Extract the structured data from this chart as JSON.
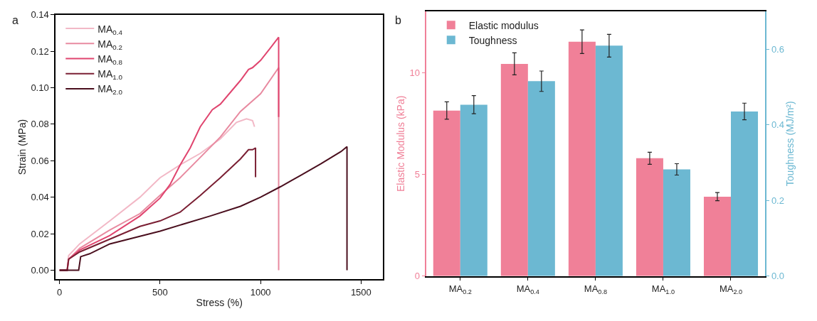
{
  "chart_data": [
    {
      "type": "line",
      "xlabel": "Stress (%)",
      "ylabel": "Strain (MPa)",
      "annotations": [
        "a"
      ],
      "xlim": [
        -20,
        1610
      ],
      "xticks": [
        0,
        500,
        1000,
        1500
      ],
      "ylim": [
        -0.005,
        0.14
      ],
      "yticks": [
        {
          "value": 0,
          "label": "0.00"
        },
        {
          "value": 0.02,
          "label": "0.02"
        },
        {
          "value": 0.04,
          "label": "0.04"
        },
        {
          "value": 0.06,
          "label": "0.06"
        },
        {
          "value": 0.08,
          "label": "0.08"
        },
        {
          "value": 0.1,
          "label": "0.10"
        },
        {
          "value": 0.12,
          "label": "0.12"
        },
        {
          "value": 0.14,
          "label": "0.14"
        }
      ],
      "grid": false,
      "legend": "top left",
      "marker": "none",
      "line_style": "solid",
      "series": [
        {
          "name": "MA$_{0.4}$",
          "color": "#f2b8c6",
          "x": [
            0,
            38,
            45,
            100,
            250,
            400,
            500,
            600,
            700,
            800,
            880,
            930,
            960,
            970
          ],
          "values": [
            0,
            0,
            0.008,
            0.0144,
            0.027,
            0.04,
            0.0507,
            0.0577,
            0.064,
            0.072,
            0.081,
            0.083,
            0.082,
            0.0786
          ]
        },
        {
          "name": "MA$_{0.2}$",
          "color": "#e88aa0",
          "x": [
            0,
            38,
            45,
            100,
            250,
            400,
            500,
            600,
            700,
            800,
            900,
            1000,
            1090,
            1090
          ],
          "values": [
            0,
            0,
            0.006,
            0.012,
            0.022,
            0.031,
            0.041,
            0.0507,
            0.0618,
            0.073,
            0.087,
            0.0967,
            0.111,
            0
          ]
        },
        {
          "name": "MA$_{0.8}$",
          "color": "#e0456f",
          "x": [
            0,
            38,
            45,
            100,
            250,
            400,
            500,
            550,
            600,
            650,
            700,
            760,
            800,
            900,
            940,
            960,
            1000,
            1050,
            1090,
            1090
          ],
          "values": [
            0,
            0,
            0.006,
            0.011,
            0.019,
            0.0297,
            0.0395,
            0.047,
            0.0577,
            0.067,
            0.0786,
            0.088,
            0.091,
            0.104,
            0.11,
            0.111,
            0.115,
            0.122,
            0.1277,
            0.084
          ]
        },
        {
          "name": "MA$_{1.0}$",
          "color": "#7a1f33",
          "x": [
            0,
            38,
            45,
            100,
            250,
            400,
            500,
            600,
            700,
            800,
            900,
            940,
            960,
            975,
            975
          ],
          "values": [
            0,
            0,
            0.006,
            0.01,
            0.017,
            0.024,
            0.027,
            0.0318,
            0.0409,
            0.0507,
            0.061,
            0.066,
            0.066,
            0.067,
            0.051
          ]
        },
        {
          "name": "MA$_{2.0}$",
          "color": "#4a0f1e",
          "x": [
            0,
            95,
            105,
            150,
            250,
            500,
            750,
            900,
            1000,
            1100,
            1200,
            1300,
            1400,
            1430,
            1430
          ],
          "values": [
            0,
            0,
            0.0074,
            0.009,
            0.0144,
            0.0214,
            0.0297,
            0.035,
            0.04,
            0.0458,
            0.052,
            0.0583,
            0.065,
            0.0677,
            0
          ]
        }
      ]
    },
    {
      "type": "bar",
      "ylabel": "Elastic Modulus (kPa)",
      "y2label": "Toughness (MJ/m²)",
      "annotations": [
        "b"
      ],
      "categories": [
        "MA$_{0.2}$",
        "MA$_{0.4}$",
        "MA$_{0.8}$",
        "MA$_{1.0}$",
        "MA$_{2.0}$"
      ],
      "ylim": [
        0,
        13.04
      ],
      "yticks": [
        0,
        5,
        10
      ],
      "y2lim": [
        0,
        0.7
      ],
      "y2ticks": [
        {
          "value": 0,
          "label": "0.0"
        },
        {
          "value": 0.2,
          "label": "0.2"
        },
        {
          "value": 0.4,
          "label": "0.4"
        },
        {
          "value": 0.6,
          "label": "0.6"
        }
      ],
      "grid": false,
      "legend": "top left",
      "series": [
        {
          "name": "Elastic modulus",
          "color": "#f08098",
          "values": [
            8.15,
            10.45,
            11.54,
            5.8,
            3.91
          ],
          "errors": [
            0.43,
            0.54,
            0.58,
            0.3,
            0.2
          ]
        },
        {
          "name": "Toughness",
          "color": "#6cb8d2",
          "axis": "y2",
          "values": [
            0.453,
            0.515,
            0.609,
            0.282,
            0.435
          ],
          "errors": [
            0.024,
            0.027,
            0.03,
            0.015,
            0.022
          ]
        }
      ]
    }
  ]
}
